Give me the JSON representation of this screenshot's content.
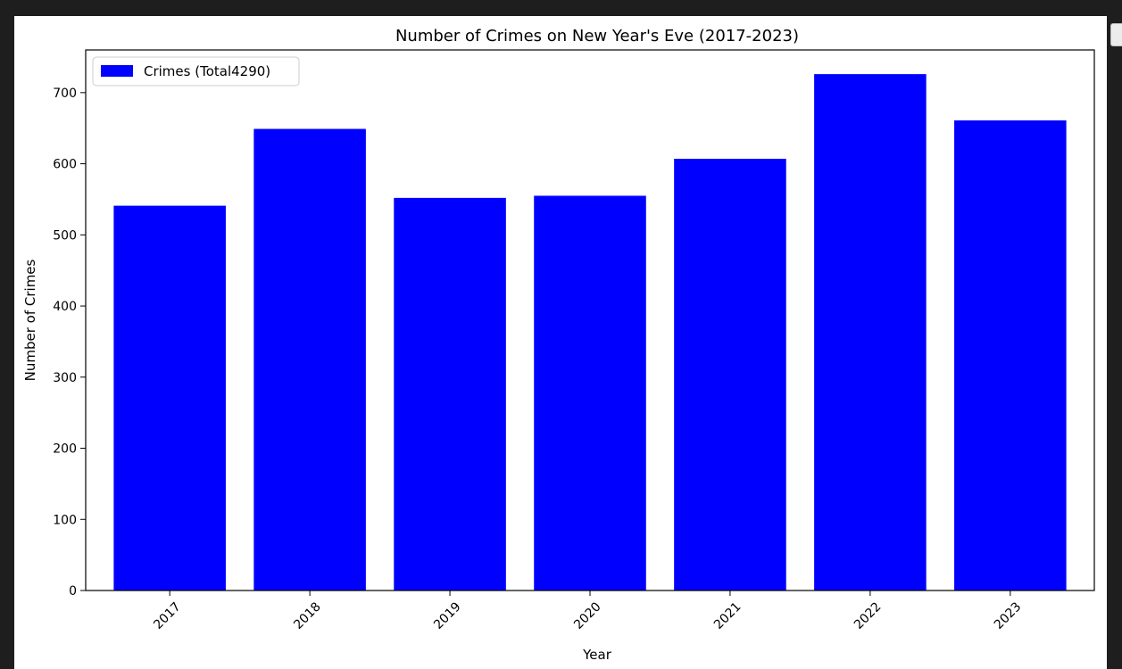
{
  "chart_data": {
    "type": "bar",
    "title": "Number of Crimes on New Year's Eve (2017-2023)",
    "xlabel": "Year",
    "ylabel": "Number of Crimes",
    "categories": [
      "2017",
      "2018",
      "2019",
      "2020",
      "2021",
      "2022",
      "2023"
    ],
    "series": [
      {
        "name": "Crimes (Total4290)",
        "values": [
          541,
          649,
          552,
          555,
          607,
          726,
          661
        ]
      }
    ],
    "ylim": [
      0,
      760
    ],
    "yticks": [
      0,
      100,
      200,
      300,
      400,
      500,
      600,
      700
    ],
    "bar_color": "#0000ff",
    "legend_position": "upper left",
    "grid": false,
    "xtick_rotation": "45 degrees"
  }
}
